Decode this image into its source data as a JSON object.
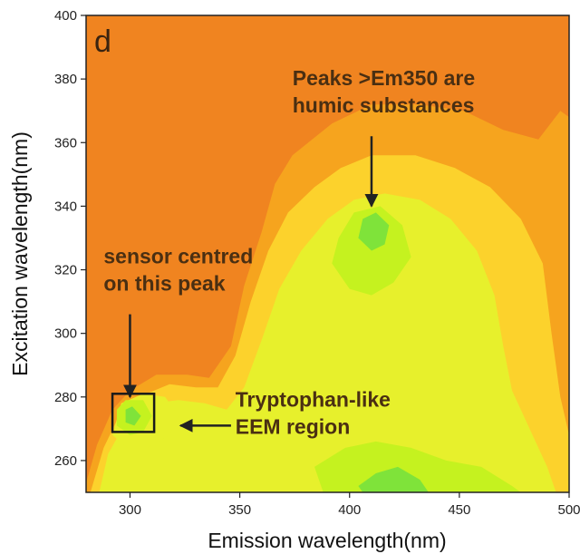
{
  "chart_data": {
    "type": "heatmap",
    "panel_label": "d",
    "xlabel": "Emission wavelength(nm)",
    "ylabel": "Excitation wavelength(nm)",
    "xlim": [
      280,
      500
    ],
    "ylim": [
      250,
      400
    ],
    "xticks": [
      300,
      350,
      400,
      450,
      500
    ],
    "yticks": [
      260,
      280,
      300,
      320,
      340,
      360,
      380,
      400
    ],
    "colorscale": [
      "#f08420",
      "#f6a41e",
      "#fcd22c",
      "#e7f02c",
      "#c5f21f",
      "#7fe33a"
    ],
    "background_color": "#f08420",
    "regions": [
      {
        "level": 1,
        "points": [
          [
            280,
            253
          ],
          [
            285,
            265
          ],
          [
            292,
            276
          ],
          [
            300,
            282
          ],
          [
            312,
            287
          ],
          [
            326,
            287
          ],
          [
            336,
            286
          ],
          [
            346,
            296
          ],
          [
            352,
            315
          ],
          [
            360,
            332
          ],
          [
            366,
            347
          ],
          [
            374,
            356
          ],
          [
            392,
            366
          ],
          [
            410,
            372
          ],
          [
            432,
            372
          ],
          [
            452,
            370
          ],
          [
            470,
            364
          ],
          [
            486,
            361
          ],
          [
            496,
            370
          ],
          [
            500,
            368
          ],
          [
            500,
            250
          ],
          [
            280,
            250
          ]
        ]
      },
      {
        "level": 2,
        "points": [
          [
            282,
            250
          ],
          [
            288,
            264
          ],
          [
            295,
            274
          ],
          [
            304,
            280
          ],
          [
            318,
            284
          ],
          [
            330,
            283
          ],
          [
            340,
            283
          ],
          [
            348,
            293
          ],
          [
            355,
            310
          ],
          [
            363,
            326
          ],
          [
            372,
            338
          ],
          [
            384,
            346
          ],
          [
            396,
            352
          ],
          [
            410,
            356
          ],
          [
            430,
            356
          ],
          [
            448,
            352
          ],
          [
            464,
            346
          ],
          [
            478,
            336
          ],
          [
            488,
            322
          ],
          [
            492,
            300
          ],
          [
            496,
            280
          ],
          [
            500,
            268
          ],
          [
            500,
            250
          ]
        ]
      },
      {
        "level": 3,
        "points": [
          [
            286,
            250
          ],
          [
            290,
            262
          ],
          [
            298,
            272
          ],
          [
            310,
            278
          ],
          [
            322,
            279
          ],
          [
            334,
            278
          ],
          [
            344,
            276
          ],
          [
            352,
            283
          ],
          [
            360,
            298
          ],
          [
            368,
            314
          ],
          [
            378,
            326
          ],
          [
            390,
            336
          ],
          [
            402,
            342
          ],
          [
            416,
            344
          ],
          [
            432,
            342
          ],
          [
            446,
            336
          ],
          [
            458,
            326
          ],
          [
            466,
            312
          ],
          [
            470,
            296
          ],
          [
            474,
            282
          ],
          [
            482,
            270
          ],
          [
            490,
            258
          ],
          [
            494,
            250
          ]
        ]
      },
      {
        "level": 3,
        "points": [
          [
            292,
            268
          ],
          [
            299,
            264
          ],
          [
            308,
            264
          ],
          [
            318,
            268
          ],
          [
            322,
            274
          ],
          [
            316,
            280
          ],
          [
            306,
            281
          ],
          [
            296,
            278
          ]
        ]
      },
      {
        "level": 4,
        "points": [
          [
            392,
            322
          ],
          [
            400,
            314
          ],
          [
            410,
            312
          ],
          [
            420,
            316
          ],
          [
            428,
            324
          ],
          [
            424,
            334
          ],
          [
            414,
            340
          ],
          [
            402,
            338
          ],
          [
            395,
            330
          ]
        ]
      },
      {
        "level": 4,
        "points": [
          [
            294,
            271
          ],
          [
            300,
            268
          ],
          [
            306,
            269
          ],
          [
            310,
            274
          ],
          [
            306,
            279
          ],
          [
            298,
            279
          ],
          [
            294,
            276
          ]
        ]
      },
      {
        "level": 4,
        "points": [
          [
            384,
            258
          ],
          [
            398,
            264
          ],
          [
            412,
            266
          ],
          [
            428,
            264
          ],
          [
            444,
            260
          ],
          [
            460,
            258
          ],
          [
            474,
            252
          ],
          [
            478,
            250
          ],
          [
            388,
            250
          ]
        ]
      },
      {
        "level": 5,
        "points": [
          [
            404,
            330
          ],
          [
            410,
            326
          ],
          [
            416,
            328
          ],
          [
            418,
            334
          ],
          [
            412,
            338
          ],
          [
            406,
            336
          ]
        ]
      },
      {
        "level": 5,
        "points": [
          [
            404,
            252
          ],
          [
            412,
            256
          ],
          [
            422,
            258
          ],
          [
            432,
            254
          ],
          [
            436,
            250
          ],
          [
            406,
            250
          ]
        ]
      },
      {
        "level": 5,
        "points": [
          [
            298,
            272
          ],
          [
            302,
            271
          ],
          [
            305,
            274
          ],
          [
            301,
            277
          ],
          [
            298,
            276
          ]
        ]
      }
    ],
    "annotations": [
      {
        "lines": [
          "Peaks >Em350 are",
          "humic substances"
        ],
        "x": 374,
        "y": 378,
        "arrow_from": [
          410,
          362
        ],
        "arrow_to": [
          410,
          340
        ]
      },
      {
        "lines": [
          "sensor centred",
          "on this peak"
        ],
        "x": 288,
        "y": 322,
        "arrow_from": [
          300,
          306
        ],
        "arrow_to": [
          300,
          280
        ]
      },
      {
        "lines": [
          "Tryptophan-like",
          "EEM region"
        ],
        "x": 348,
        "y": 277,
        "arrow_from": [
          346,
          271
        ],
        "arrow_to": [
          323,
          271
        ]
      }
    ],
    "highlight_box": {
      "x0": 292,
      "x1": 311,
      "y0": 269,
      "y1": 281
    }
  }
}
